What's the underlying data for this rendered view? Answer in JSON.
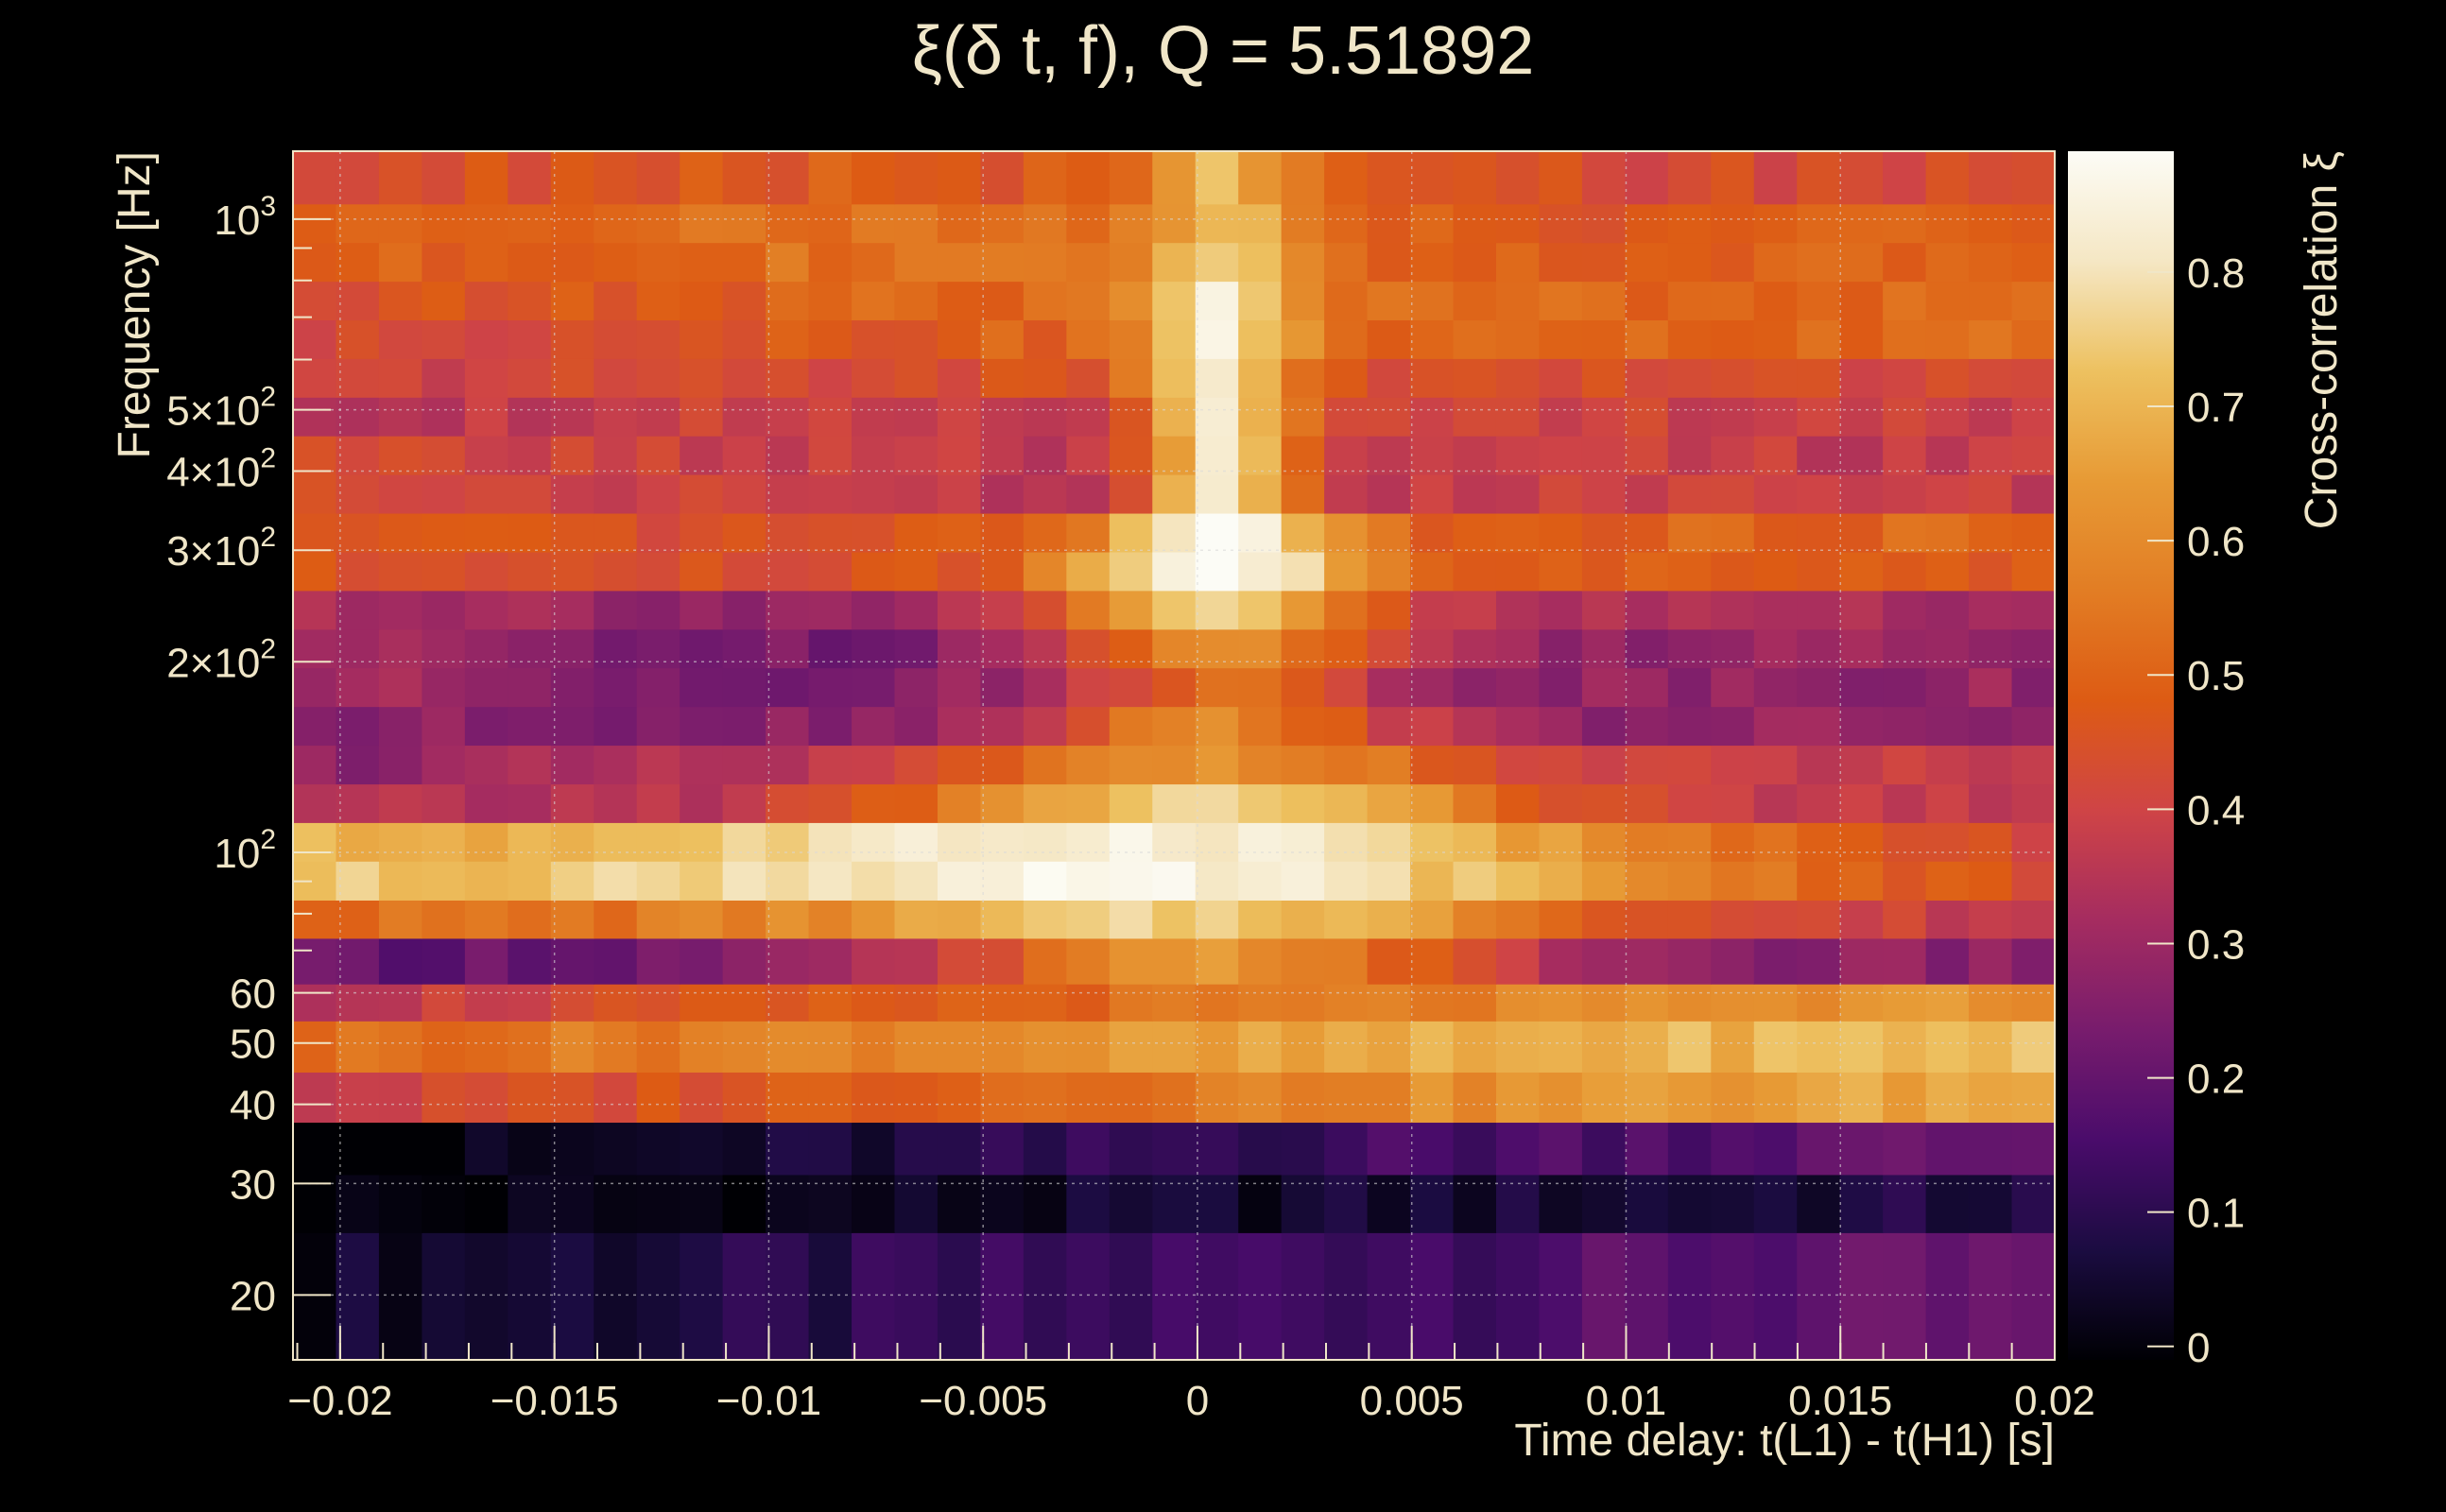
{
  "chart_data": {
    "type": "heatmap",
    "title": "ξ(δ t, f), Q = 5.51892",
    "xlabel": "Time delay: t(L1) - t(H1) [s]",
    "ylabel": "Frequency [Hz]",
    "colorbar_label": "Cross-correlation ξ",
    "xlim": [
      -0.0211,
      0.02
    ],
    "ylim": [
      15.8,
      1280
    ],
    "y_scale": "log",
    "grid": true,
    "x_ticks": [
      -0.02,
      -0.015,
      -0.01,
      -0.005,
      0,
      0.005,
      0.01,
      0.015,
      0.02
    ],
    "x_tick_labels": [
      "−0.02",
      "−0.015",
      "−0.01",
      "−0.005",
      "0",
      "0.005",
      "0.01",
      "0.015",
      "0.02"
    ],
    "y_ticks": [
      {
        "value": 20,
        "base": "20",
        "exp": ""
      },
      {
        "value": 30,
        "base": "30",
        "exp": ""
      },
      {
        "value": 40,
        "base": "40",
        "exp": ""
      },
      {
        "value": 50,
        "base": "50",
        "exp": ""
      },
      {
        "value": 60,
        "base": "60",
        "exp": ""
      },
      {
        "value": 100,
        "base": "10",
        "exp": "2"
      },
      {
        "value": 200,
        "base": "2×10",
        "exp": "2"
      },
      {
        "value": 300,
        "base": "3×10",
        "exp": "2"
      },
      {
        "value": 400,
        "base": "4×10",
        "exp": "2"
      },
      {
        "value": 500,
        "base": "5×10",
        "exp": "2"
      },
      {
        "value": 1000,
        "base": "10",
        "exp": "3"
      }
    ],
    "colorbar_range": [
      -0.01,
      0.89
    ],
    "colorbar_ticks": [
      0,
      0.1,
      0.2,
      0.3,
      0.4,
      0.5,
      0.6,
      0.7,
      0.8
    ],
    "colorbar_tick_labels": [
      "0",
      "0.1",
      "0.2",
      "0.3",
      "0.4",
      "0.5",
      "0.6",
      "0.7",
      "0.8"
    ],
    "colormap": [
      "#000004",
      "#1b0c41",
      "#4a0c6b",
      "#781c6d",
      "#a52c60",
      "#cf4446",
      "#dd5b14",
      "#e27d24",
      "#e79a35",
      "#edc160",
      "#f5e7c4",
      "#fcfcf6"
    ],
    "time_bins": 41,
    "rows": [
      {
        "f_lo": 15.8,
        "f_hi": 25.1,
        "base": 0.1,
        "peak": 0.0,
        "peak_width": 1.0,
        "x_trend": 0.06,
        "corners": [
          0.1,
          0.12,
          0.16,
          0.18
        ]
      },
      {
        "f_lo": 25.1,
        "f_hi": 31.0,
        "base": 0.03,
        "peak": 0.0,
        "peak_width": 1.0,
        "x_trend": 0.03,
        "corners": [
          0.02,
          0.03,
          0.05,
          0.06
        ]
      },
      {
        "f_lo": 31.0,
        "f_hi": 37.5,
        "base": 0.09,
        "peak": 0.0,
        "peak_width": 1.0,
        "x_trend": 0.08,
        "corners": [
          0.04,
          0.08,
          0.14,
          0.17
        ]
      },
      {
        "f_lo": 37.5,
        "f_hi": 45.0,
        "base": 0.55,
        "peak": 0.0,
        "peak_width": 1.0,
        "x_trend": 0.1,
        "corners": [
          0.42,
          0.5,
          0.58,
          0.62
        ]
      },
      {
        "f_lo": 45.0,
        "f_hi": 54.2,
        "base": 0.62,
        "peak": 0.0,
        "peak_width": 1.0,
        "x_trend": 0.06,
        "corners": [
          0.55,
          0.6,
          0.66,
          0.71
        ]
      },
      {
        "f_lo": 54.2,
        "f_hi": 62.0,
        "base": 0.5,
        "peak": 0.0,
        "peak_width": 1.0,
        "x_trend": 0.08,
        "corners": [
          0.4,
          0.48,
          0.56,
          0.6
        ]
      },
      {
        "f_lo": 62.0,
        "f_hi": 73.2,
        "base": 0.25,
        "peak": 0.35,
        "peak_width": 4.5,
        "x_trend": 0.0,
        "corners": [
          0.14,
          0.22,
          0.3,
          0.28
        ]
      },
      {
        "f_lo": 73.2,
        "f_hi": 84.1,
        "base": 0.45,
        "peak": 0.3,
        "peak_width": 6.0,
        "x_trend": -0.05,
        "corners": [
          0.5,
          0.55,
          0.46,
          0.4
        ]
      },
      {
        "f_lo": 84.1,
        "f_hi": 96.9,
        "base": 0.58,
        "peak": 0.26,
        "peak_width": 8.0,
        "x_trend": -0.1,
        "corners": [
          0.66,
          0.7,
          0.58,
          0.5
        ]
      },
      {
        "f_lo": 96.9,
        "f_hi": 111.5,
        "base": 0.55,
        "peak": 0.3,
        "peak_width": 7.0,
        "x_trend": -0.1,
        "corners": [
          0.62,
          0.68,
          0.55,
          0.48
        ]
      },
      {
        "f_lo": 111.5,
        "f_hi": 128.3,
        "base": 0.35,
        "peak": 0.4,
        "peak_width": 5.0,
        "x_trend": 0.0,
        "corners": [
          0.3,
          0.35,
          0.38,
          0.36
        ]
      },
      {
        "f_lo": 128.3,
        "f_hi": 147.7,
        "base": 0.38,
        "peak": 0.25,
        "peak_width": 4.0,
        "x_trend": 0.02,
        "corners": [
          0.22,
          0.3,
          0.38,
          0.34
        ]
      },
      {
        "f_lo": 147.7,
        "f_hi": 170.0,
        "base": 0.28,
        "peak": 0.3,
        "peak_width": 3.0,
        "x_trend": 0.0,
        "corners": [
          0.24,
          0.26,
          0.3,
          0.28
        ]
      },
      {
        "f_lo": 170.0,
        "f_hi": 195.7,
        "base": 0.3,
        "peak": 0.25,
        "peak_width": 2.5,
        "x_trend": 0.0,
        "corners": [
          0.32,
          0.2,
          0.24,
          0.28
        ]
      },
      {
        "f_lo": 195.7,
        "f_hi": 225.2,
        "base": 0.28,
        "peak": 0.35,
        "peak_width": 3.0,
        "x_trend": 0.0,
        "corners": [
          0.34,
          0.18,
          0.22,
          0.3
        ]
      },
      {
        "f_lo": 225.2,
        "f_hi": 259.2,
        "base": 0.32,
        "peak": 0.45,
        "peak_width": 2.5,
        "x_trend": 0.0,
        "corners": [
          0.36,
          0.26,
          0.3,
          0.34
        ]
      },
      {
        "f_lo": 259.2,
        "f_hi": 298.3,
        "base": 0.45,
        "peak": 0.42,
        "peak_width": 2.5,
        "x_trend": 0.02,
        "corners": [
          0.48,
          0.44,
          0.46,
          0.48
        ]
      },
      {
        "f_lo": 298.3,
        "f_hi": 343.4,
        "base": 0.46,
        "peak": 0.4,
        "peak_width": 2.0,
        "x_trend": 0.03,
        "corners": [
          0.5,
          0.44,
          0.48,
          0.5
        ]
      },
      {
        "f_lo": 343.4,
        "f_hi": 395.2,
        "base": 0.4,
        "peak": 0.45,
        "peak_width": 1.2,
        "x_trend": -0.02,
        "corners": [
          0.42,
          0.36,
          0.3,
          0.4
        ]
      },
      {
        "f_lo": 395.2,
        "f_hi": 454.9,
        "base": 0.4,
        "peak": 0.45,
        "peak_width": 1.2,
        "x_trend": -0.02,
        "corners": [
          0.4,
          0.36,
          0.28,
          0.38
        ]
      },
      {
        "f_lo": 454.9,
        "f_hi": 523.5,
        "base": 0.4,
        "peak": 0.45,
        "peak_width": 1.2,
        "x_trend": 0.0,
        "corners": [
          0.32,
          0.4,
          0.36,
          0.4
        ]
      },
      {
        "f_lo": 523.5,
        "f_hi": 602.5,
        "base": 0.42,
        "peak": 0.38,
        "peak_width": 1.2,
        "x_trend": 0.0,
        "corners": [
          0.36,
          0.44,
          0.48,
          0.44
        ]
      },
      {
        "f_lo": 602.5,
        "f_hi": 693.4,
        "base": 0.46,
        "peak": 0.35,
        "peak_width": 1.2,
        "x_trend": 0.02,
        "corners": [
          0.4,
          0.5,
          0.56,
          0.52
        ]
      },
      {
        "f_lo": 693.4,
        "f_hi": 798.0,
        "base": 0.48,
        "peak": 0.32,
        "peak_width": 1.2,
        "x_trend": 0.02,
        "corners": [
          0.42,
          0.52,
          0.58,
          0.52
        ]
      },
      {
        "f_lo": 798.0,
        "f_hi": 918.5,
        "base": 0.5,
        "peak": 0.25,
        "peak_width": 1.2,
        "x_trend": 0.0,
        "corners": [
          0.46,
          0.56,
          0.54,
          0.48
        ]
      },
      {
        "f_lo": 918.5,
        "f_hi": 1057.0,
        "base": 0.5,
        "peak": 0.22,
        "peak_width": 1.2,
        "x_trend": 0.0,
        "corners": [
          0.5,
          0.58,
          0.52,
          0.46
        ]
      },
      {
        "f_lo": 1057.0,
        "f_hi": 1280.0,
        "base": 0.46,
        "peak": 0.25,
        "peak_width": 1.2,
        "x_trend": 0.0,
        "corners": [
          0.4,
          0.5,
          0.46,
          0.4
        ]
      }
    ]
  }
}
